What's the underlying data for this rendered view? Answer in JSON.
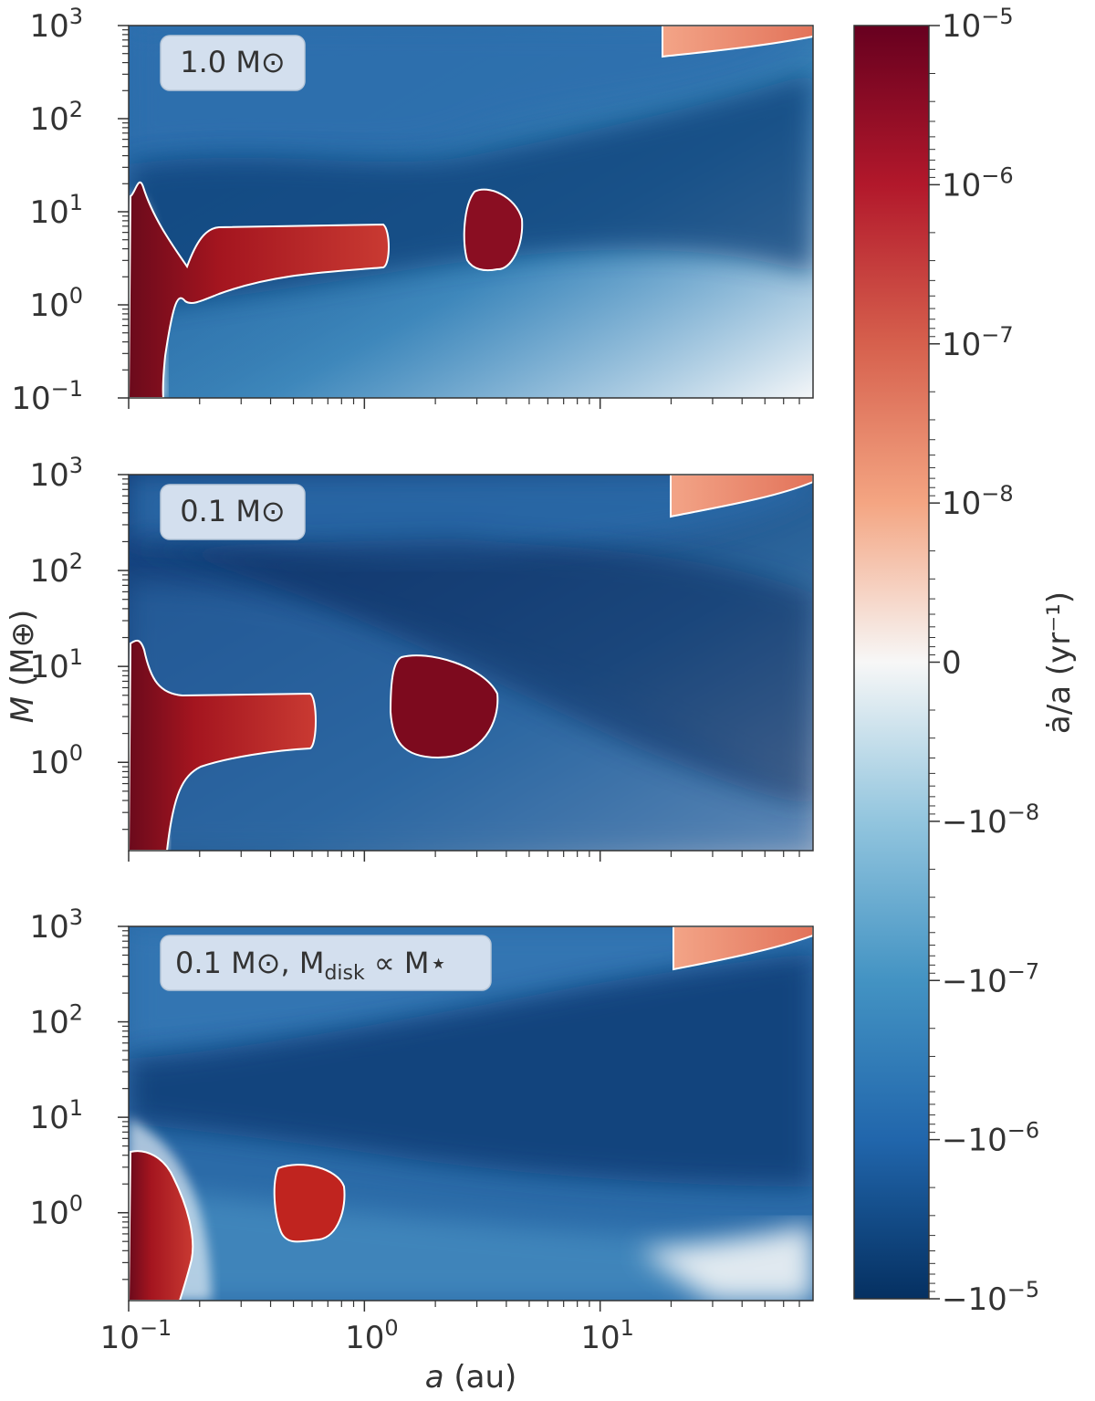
{
  "chart_data": {
    "type": "heatmap",
    "x_scale": "log",
    "y_scale": "log",
    "xlabel_italic": "a",
    "xlabel_rest": " (au)",
    "ylabel_italic": "M",
    "ylabel_rest": " (M⊕)",
    "xlim": [
      0.1,
      80
    ],
    "x_ticks": [
      {
        "value": 0.1,
        "base": "10",
        "exp": "−1"
      },
      {
        "value": 1,
        "base": "10",
        "exp": "0"
      },
      {
        "value": 10,
        "base": "10",
        "exp": "1"
      }
    ],
    "colorbar": {
      "label": "ȧ/a (yr⁻¹)",
      "scale": "symlog",
      "colormap": "RdBu_r",
      "range": [
        "-1e-5",
        "1e-5"
      ],
      "ticks": [
        {
          "value": "1e-5",
          "text": "10",
          "exp": "−5"
        },
        {
          "value": "1e-6",
          "text": "10",
          "exp": "−6"
        },
        {
          "value": "1e-7",
          "text": "10",
          "exp": "−7"
        },
        {
          "value": "1e-8",
          "text": "10",
          "exp": "−8"
        },
        {
          "value": "0",
          "text": "0",
          "exp": ""
        },
        {
          "value": "-1e-8",
          "text": "−10",
          "exp": "−8"
        },
        {
          "value": "-1e-7",
          "text": "−10",
          "exp": "−7"
        },
        {
          "value": "-1e-6",
          "text": "−10",
          "exp": "−6"
        },
        {
          "value": "-1e-5",
          "text": "−10",
          "exp": "−5"
        }
      ],
      "colors": {
        "pos_max": "#67001f",
        "pos_mid": "#d6604d",
        "zero": "#f7f7f7",
        "neg_mid": "#4393c3",
        "neg_max": "#053061"
      }
    },
    "panels": [
      {
        "label": "1.0 M⊙",
        "ylim": [
          0.1,
          1000
        ],
        "y_ticks": [
          {
            "value": 0.1,
            "base": "10",
            "exp": "−1"
          },
          {
            "value": 1,
            "base": "10",
            "exp": "0"
          },
          {
            "value": 10,
            "base": "10",
            "exp": "1"
          },
          {
            "value": 100,
            "base": "10",
            "exp": "2"
          },
          {
            "value": 1000,
            "base": "10",
            "exp": "3"
          }
        ],
        "outward_regions": [
          {
            "name": "inner-edge-zone",
            "a_range": [
              0.1,
              0.17
            ],
            "M_range": [
              0.1,
              20
            ],
            "value": "1e-5"
          },
          {
            "name": "inner-band",
            "a_range": [
              0.18,
              1.3
            ],
            "M_range": [
              1.0,
              7.0
            ],
            "value": "1e-5"
          },
          {
            "name": "island",
            "a_range": [
              3.0,
              5.0
            ],
            "M_range": [
              2.0,
              17
            ],
            "value": "1e-5"
          },
          {
            "name": "giant-corner",
            "a_range": [
              20,
              80
            ],
            "M_range": [
              500,
              1000
            ],
            "value": "1e-7"
          }
        ]
      },
      {
        "label": "0.1 M⊙",
        "ylim": [
          0.12,
          1000
        ],
        "y_ticks": [
          {
            "value": 1,
            "base": "10",
            "exp": "0"
          },
          {
            "value": 10,
            "base": "10",
            "exp": "1"
          },
          {
            "value": 100,
            "base": "10",
            "exp": "2"
          },
          {
            "value": 1000,
            "base": "10",
            "exp": "3"
          }
        ],
        "outward_regions": [
          {
            "name": "inner-edge-zone",
            "a_range": [
              0.1,
              0.15
            ],
            "M_range": [
              0.12,
              16
            ],
            "value": "1e-5"
          },
          {
            "name": "inner-band",
            "a_range": [
              0.12,
              0.62
            ],
            "M_range": [
              1.0,
              5.0
            ],
            "value": "1e-5"
          },
          {
            "name": "island",
            "a_range": [
              1.5,
              4.0
            ],
            "M_range": [
              1.0,
              12
            ],
            "value": "1e-5"
          },
          {
            "name": "giant-corner",
            "a_range": [
              22,
              80
            ],
            "M_range": [
              400,
              1000
            ],
            "value": "1e-7"
          }
        ]
      },
      {
        "label_main": "0.1 M⊙, M",
        "label_sub": "disk",
        "label_tail": " ∝ M⋆",
        "ylim": [
          0.12,
          1000
        ],
        "y_ticks": [
          {
            "value": 1,
            "base": "10",
            "exp": "0"
          },
          {
            "value": 10,
            "base": "10",
            "exp": "1"
          },
          {
            "value": 100,
            "base": "10",
            "exp": "2"
          },
          {
            "value": 1000,
            "base": "10",
            "exp": "3"
          }
        ],
        "outward_regions": [
          {
            "name": "inner-zone",
            "a_range": [
              0.1,
              0.22
            ],
            "M_range": [
              0.12,
              4.0
            ],
            "value": "1e-5"
          },
          {
            "name": "island",
            "a_range": [
              0.43,
              0.82
            ],
            "M_range": [
              0.42,
              2.8
            ],
            "value": "1e-5"
          },
          {
            "name": "giant-corner",
            "a_range": [
              22,
              80
            ],
            "M_range": [
              350,
              1000
            ],
            "value": "1e-7"
          }
        ]
      }
    ]
  }
}
